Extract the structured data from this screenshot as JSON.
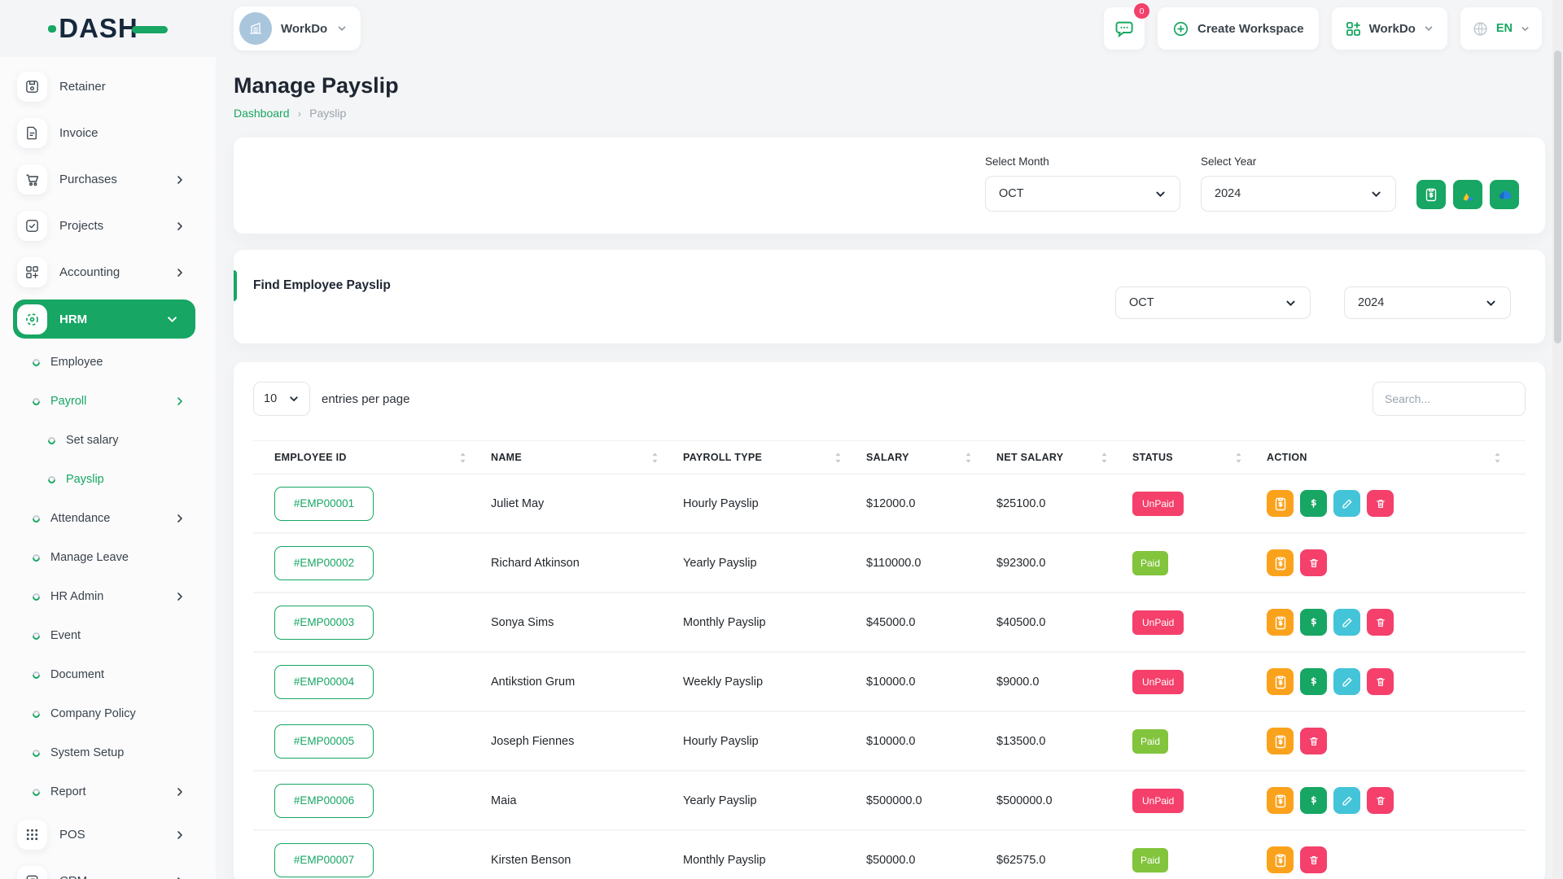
{
  "brand": {
    "name": "DASH"
  },
  "topbar": {
    "workspace": {
      "label": "WorkDo"
    },
    "messages": {
      "badge": "0"
    },
    "create_workspace": {
      "label": "Create Workspace"
    },
    "app_menu": {
      "label": "WorkDo"
    },
    "language": {
      "label": "EN"
    }
  },
  "sidebar": {
    "items": [
      {
        "kind": "main",
        "label": "Retainer",
        "icon": "retainer-icon"
      },
      {
        "kind": "main",
        "label": "Invoice",
        "icon": "invoice-icon"
      },
      {
        "kind": "main",
        "label": "Purchases",
        "icon": "purchases-icon",
        "chevron": "right"
      },
      {
        "kind": "main",
        "label": "Projects",
        "icon": "projects-icon",
        "chevron": "right"
      },
      {
        "kind": "main",
        "label": "Accounting",
        "icon": "accounting-icon",
        "chevron": "right"
      },
      {
        "kind": "main",
        "label": "HRM",
        "icon": "hrm-icon",
        "chevron": "down",
        "active": true
      },
      {
        "kind": "sub",
        "label": "Employee",
        "indent": 1
      },
      {
        "kind": "sub",
        "label": "Payroll",
        "indent": 1,
        "chevron": "right",
        "active": true
      },
      {
        "kind": "sub",
        "label": "Set salary",
        "indent": 2
      },
      {
        "kind": "sub",
        "label": "Payslip",
        "indent": 2,
        "active": true
      },
      {
        "kind": "sub",
        "label": "Attendance",
        "indent": 1,
        "chevron": "right"
      },
      {
        "kind": "sub",
        "label": "Manage Leave",
        "indent": 1
      },
      {
        "kind": "sub",
        "label": "HR Admin",
        "indent": 1,
        "chevron": "right"
      },
      {
        "kind": "sub",
        "label": "Event",
        "indent": 1
      },
      {
        "kind": "sub",
        "label": "Document",
        "indent": 1
      },
      {
        "kind": "sub",
        "label": "Company Policy",
        "indent": 1
      },
      {
        "kind": "sub",
        "label": "System Setup",
        "indent": 1
      },
      {
        "kind": "sub",
        "label": "Report",
        "indent": 1,
        "chevron": "right"
      },
      {
        "kind": "main",
        "label": "POS",
        "icon": "pos-icon",
        "chevron": "right"
      },
      {
        "kind": "main",
        "label": "CRM",
        "icon": "crm-icon",
        "chevron": "right"
      }
    ]
  },
  "page": {
    "title": "Manage Payslip",
    "breadcrumb": {
      "home": "Dashboard",
      "separator": "›",
      "current": "Payslip"
    }
  },
  "filters": {
    "month_label": "Select Month",
    "month_value": "OCT",
    "year_label": "Select Year",
    "year_value": "2024",
    "export_buttons": [
      {
        "icon": "bulk-payslip-icon"
      },
      {
        "icon": "google-drive-icon"
      },
      {
        "icon": "onedrive-icon"
      }
    ]
  },
  "find_payslip": {
    "title": "Find Employee Payslip",
    "month_value": "OCT",
    "year_value": "2024"
  },
  "table": {
    "entries_per_page": "10",
    "entries_label": "entries per page",
    "search_placeholder": "Search...",
    "columns": [
      "EMPLOYEE ID",
      "NAME",
      "PAYROLL TYPE",
      "SALARY",
      "NET SALARY",
      "STATUS",
      "ACTION"
    ],
    "rows": [
      {
        "id": "#EMP00001",
        "name": "Juliet May",
        "type": "Hourly Payslip",
        "salary": "$12000.0",
        "net": "$25100.0",
        "status": "UnPaid",
        "actions": [
          "payslip",
          "pay",
          "edit",
          "delete"
        ]
      },
      {
        "id": "#EMP00002",
        "name": "Richard Atkinson",
        "type": "Yearly Payslip",
        "salary": "$110000.0",
        "net": "$92300.0",
        "status": "Paid",
        "actions": [
          "payslip",
          "delete"
        ]
      },
      {
        "id": "#EMP00003",
        "name": "Sonya Sims",
        "type": "Monthly Payslip",
        "salary": "$45000.0",
        "net": "$40500.0",
        "status": "UnPaid",
        "actions": [
          "payslip",
          "pay",
          "edit",
          "delete"
        ]
      },
      {
        "id": "#EMP00004",
        "name": "Antikstion Grum",
        "type": "Weekly Payslip",
        "salary": "$10000.0",
        "net": "$9000.0",
        "status": "UnPaid",
        "actions": [
          "payslip",
          "pay",
          "edit",
          "delete"
        ]
      },
      {
        "id": "#EMP00005",
        "name": "Joseph Fiennes",
        "type": "Hourly Payslip",
        "salary": "$10000.0",
        "net": "$13500.0",
        "status": "Paid",
        "actions": [
          "payslip",
          "delete"
        ]
      },
      {
        "id": "#EMP00006",
        "name": "Maia",
        "type": "Yearly Payslip",
        "salary": "$500000.0",
        "net": "$500000.0",
        "status": "UnPaid",
        "actions": [
          "payslip",
          "pay",
          "edit",
          "delete"
        ]
      },
      {
        "id": "#EMP00007",
        "name": "Kirsten Benson",
        "type": "Monthly Payslip",
        "salary": "$50000.0",
        "net": "$62575.0",
        "status": "Paid",
        "actions": [
          "payslip",
          "delete"
        ]
      }
    ]
  },
  "colors": {
    "primary_green": "#17a663",
    "unpaid_badge": "#f4406b",
    "paid_badge": "#82c43c",
    "payslip_action": "#fba21c",
    "edit_action": "#43c4d9",
    "logo_navy": "#16283c"
  }
}
